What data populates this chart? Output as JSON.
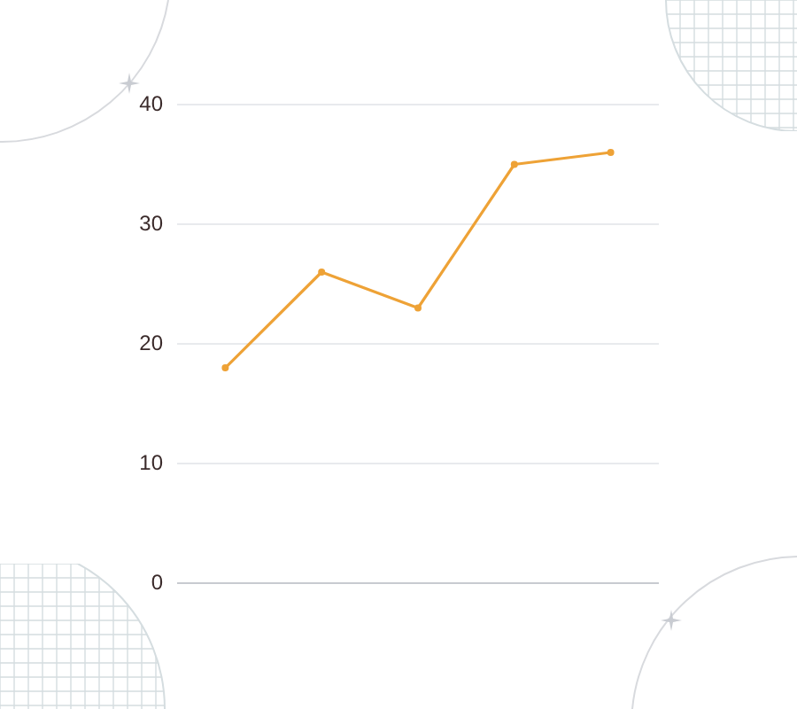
{
  "chart_data": {
    "type": "line",
    "categories": [
      null,
      null,
      null,
      null,
      null
    ],
    "series": [
      {
        "color": "#eea236",
        "values": [
          18,
          26,
          23,
          35,
          36
        ]
      }
    ],
    "ylim": [
      0,
      40
    ],
    "yticks": [
      0,
      10,
      20,
      30,
      40
    ],
    "grid": "y",
    "marker": "circle",
    "line_style": "solid",
    "legend": false
  }
}
